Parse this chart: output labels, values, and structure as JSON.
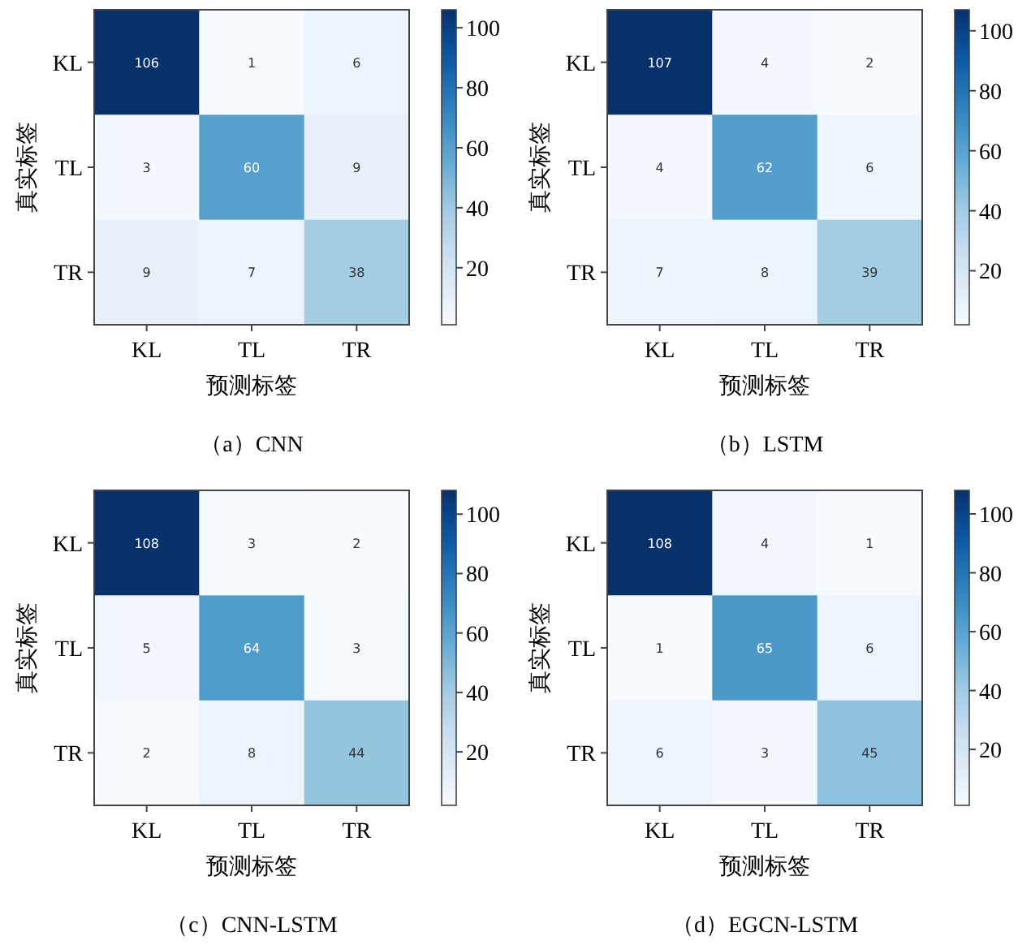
{
  "chart_data": [
    {
      "type": "heatmap",
      "title": "（a）CNN",
      "xlabel": "预测标签",
      "ylabel": "真实标签",
      "categories": [
        "KL",
        "TL",
        "TR"
      ],
      "y_categories": [
        "KL",
        "TL",
        "TR"
      ],
      "cells": [
        [
          106,
          1,
          6
        ],
        [
          3,
          60,
          9
        ],
        [
          9,
          7,
          38
        ]
      ],
      "clim": [
        1,
        106
      ],
      "cticks": [
        20,
        40,
        60,
        80,
        100
      ],
      "data_labels": true
    },
    {
      "type": "heatmap",
      "title": "（b）LSTM",
      "xlabel": "预测标签",
      "ylabel": "真实标签",
      "categories": [
        "KL",
        "TL",
        "TR"
      ],
      "y_categories": [
        "KL",
        "TL",
        "TR"
      ],
      "cells": [
        [
          107,
          4,
          2
        ],
        [
          4,
          62,
          6
        ],
        [
          7,
          8,
          39
        ]
      ],
      "clim": [
        2,
        107
      ],
      "cticks": [
        20,
        40,
        60,
        80,
        100
      ],
      "data_labels": true
    },
    {
      "type": "heatmap",
      "title": "（c）CNN-LSTM",
      "xlabel": "预测标签",
      "ylabel": "真实标签",
      "categories": [
        "KL",
        "TL",
        "TR"
      ],
      "y_categories": [
        "KL",
        "TL",
        "TR"
      ],
      "cells": [
        [
          108,
          3,
          2
        ],
        [
          5,
          64,
          3
        ],
        [
          2,
          8,
          44
        ]
      ],
      "clim": [
        2,
        108
      ],
      "cticks": [
        20,
        40,
        60,
        80,
        100
      ],
      "data_labels": true
    },
    {
      "type": "heatmap",
      "title": "（d）EGCN-LSTM",
      "xlabel": "预测标签",
      "ylabel": "真实标签",
      "categories": [
        "KL",
        "TL",
        "TR"
      ],
      "y_categories": [
        "KL",
        "TL",
        "TR"
      ],
      "cells": [
        [
          108,
          4,
          1
        ],
        [
          1,
          65,
          6
        ],
        [
          6,
          3,
          45
        ]
      ],
      "clim": [
        1,
        108
      ],
      "cticks": [
        20,
        40,
        60,
        80,
        100
      ],
      "data_labels": true
    }
  ]
}
